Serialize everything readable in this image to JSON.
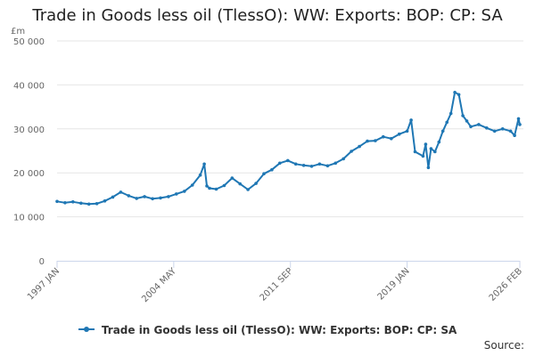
{
  "chart_data": {
    "type": "line",
    "title": "Trade in Goods less oil (TlessO): WW: Exports: BOP: CP: SA",
    "y_unit": "£m",
    "xlabel": "",
    "ylabel": "",
    "ylim": [
      0,
      50000
    ],
    "y_ticks": [
      0,
      10000,
      20000,
      30000,
      40000,
      50000
    ],
    "y_tick_labels": [
      "0",
      "10 000",
      "20 000",
      "30 000",
      "40 000",
      "50 000"
    ],
    "x_tick_labels": [
      "1997 JAN",
      "2004 MAY",
      "2011 SEP",
      "2019 JAN",
      "2026 FEB"
    ],
    "grid": true,
    "legend_position": "bottom",
    "color": "#1f77b4",
    "series": [
      {
        "name": "Trade in Goods less oil (TlessO): WW: Exports: BOP: CP: SA",
        "x": [
          "1997 JAN",
          "1997 JUL",
          "1998 JAN",
          "1998 JUL",
          "1999 JAN",
          "1999 JUL",
          "2000 JAN",
          "2000 JUL",
          "2001 JAN",
          "2001 JUL",
          "2002 JAN",
          "2002 JUL",
          "2003 JAN",
          "2003 JUL",
          "2004 JAN",
          "2004 JUL",
          "2005 JAN",
          "2005 JUL",
          "2006 JAN",
          "2006 APR",
          "2006 JUN",
          "2006 AUG",
          "2007 JAN",
          "2007 JUL",
          "2008 JAN",
          "2008 JUL",
          "2009 JAN",
          "2009 JUL",
          "2010 JAN",
          "2010 JUL",
          "2011 JAN",
          "2011 JUL",
          "2012 JAN",
          "2012 JUL",
          "2013 JAN",
          "2013 JUL",
          "2014 JAN",
          "2014 JUL",
          "2015 JAN",
          "2015 JUL",
          "2016 JAN",
          "2016 JUL",
          "2017 JAN",
          "2017 JUL",
          "2018 JAN",
          "2018 JUL",
          "2019 JAN",
          "2019 APR",
          "2019 JUL",
          "2020 JAN",
          "2020 MAR",
          "2020 MAY",
          "2020 JUL",
          "2020 OCT",
          "2021 JAN",
          "2021 APR",
          "2021 JUL",
          "2021 OCT",
          "2022 JAN",
          "2022 APR",
          "2022 JUL",
          "2022 OCT",
          "2023 JAN",
          "2023 JUL",
          "2024 JAN",
          "2024 JUL",
          "2025 JAN",
          "2025 JUL",
          "2025 OCT",
          "2026 JAN",
          "2026 FEB"
        ],
        "y": [
          13500,
          13200,
          13400,
          13100,
          12900,
          13000,
          13600,
          14500,
          15600,
          14800,
          14200,
          14600,
          14100,
          14300,
          14600,
          15200,
          15800,
          17200,
          19500,
          22000,
          17000,
          16500,
          16300,
          17100,
          18800,
          17500,
          16200,
          17600,
          19800,
          20700,
          22200,
          22800,
          22000,
          21700,
          21500,
          22000,
          21600,
          22200,
          23200,
          24900,
          26000,
          27200,
          27300,
          28200,
          27800,
          28800,
          29500,
          32000,
          24800,
          23800,
          26500,
          21200,
          25500,
          24800,
          27000,
          29500,
          31500,
          33500,
          38300,
          37800,
          33000,
          31800,
          30500,
          31000,
          30200,
          29500,
          30000,
          29500,
          28500,
          32300,
          31000
        ]
      }
    ]
  },
  "source_label": "Source:"
}
